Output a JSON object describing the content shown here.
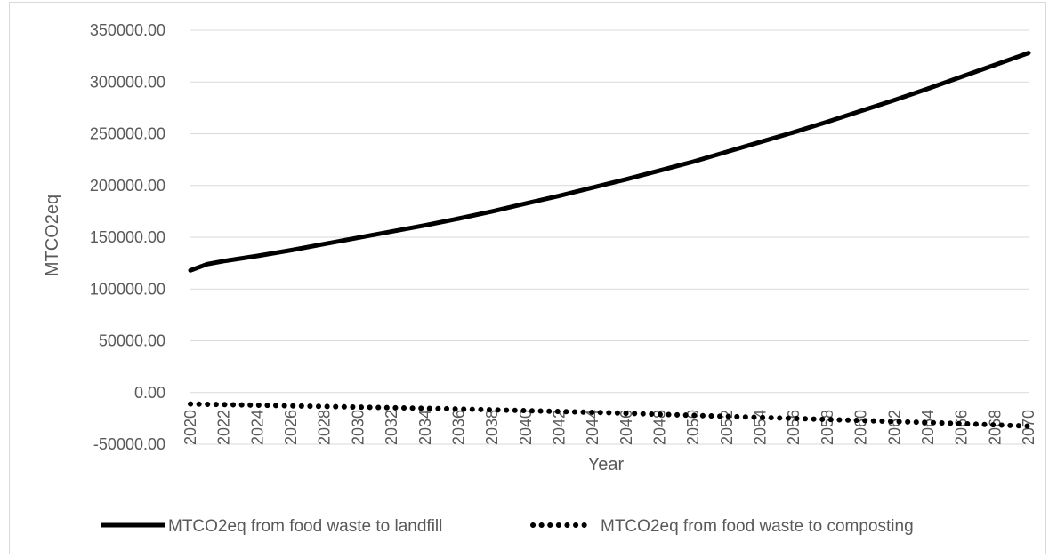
{
  "chart_data": {
    "type": "line",
    "title": "",
    "xlabel": "Year",
    "ylabel": "MTCO2eq",
    "ylim": [
      -50000,
      350000
    ],
    "ytick_step": 50000,
    "ytick_labels": [
      "350000.00",
      "300000.00",
      "250000.00",
      "200000.00",
      "150000.00",
      "100000.00",
      "50000.00",
      "0.00",
      "-50000.00"
    ],
    "x_start": 2020,
    "x_end": 2070,
    "xtick_labels": [
      "2020",
      "2022",
      "2024",
      "2026",
      "2028",
      "2030",
      "2032",
      "2034",
      "2036",
      "2038",
      "2040",
      "2042",
      "2044",
      "2046",
      "2048",
      "2050",
      "2052",
      "2054",
      "2056",
      "2058",
      "2060",
      "2062",
      "2064",
      "2066",
      "2068",
      "2070"
    ],
    "grid": true,
    "legend_position": "bottom",
    "series": [
      {
        "name": "MTCO2eq from food waste to landfill",
        "style": "solid",
        "color": "#000000",
        "x": [
          2020,
          2021,
          2022,
          2024,
          2026,
          2028,
          2030,
          2032,
          2034,
          2036,
          2038,
          2040,
          2042,
          2044,
          2046,
          2048,
          2050,
          2052,
          2054,
          2056,
          2058,
          2060,
          2062,
          2064,
          2066,
          2068,
          2070
        ],
        "y": [
          118000,
          124000,
          127000,
          132000,
          137500,
          143500,
          149500,
          155500,
          161500,
          168000,
          175000,
          182500,
          190000,
          198000,
          206000,
          214500,
          223000,
          232500,
          242000,
          251500,
          261500,
          272000,
          282500,
          293500,
          305000,
          316500,
          328000
        ]
      },
      {
        "name": "MTCO2eq from food waste to composting",
        "style": "dotted",
        "color": "#000000",
        "x": [
          2020,
          2025,
          2030,
          2035,
          2040,
          2045,
          2050,
          2055,
          2060,
          2065,
          2070
        ],
        "y": [
          -11000,
          -12500,
          -14000,
          -15500,
          -17500,
          -19500,
          -22000,
          -24500,
          -27000,
          -29500,
          -32500
        ]
      }
    ]
  }
}
